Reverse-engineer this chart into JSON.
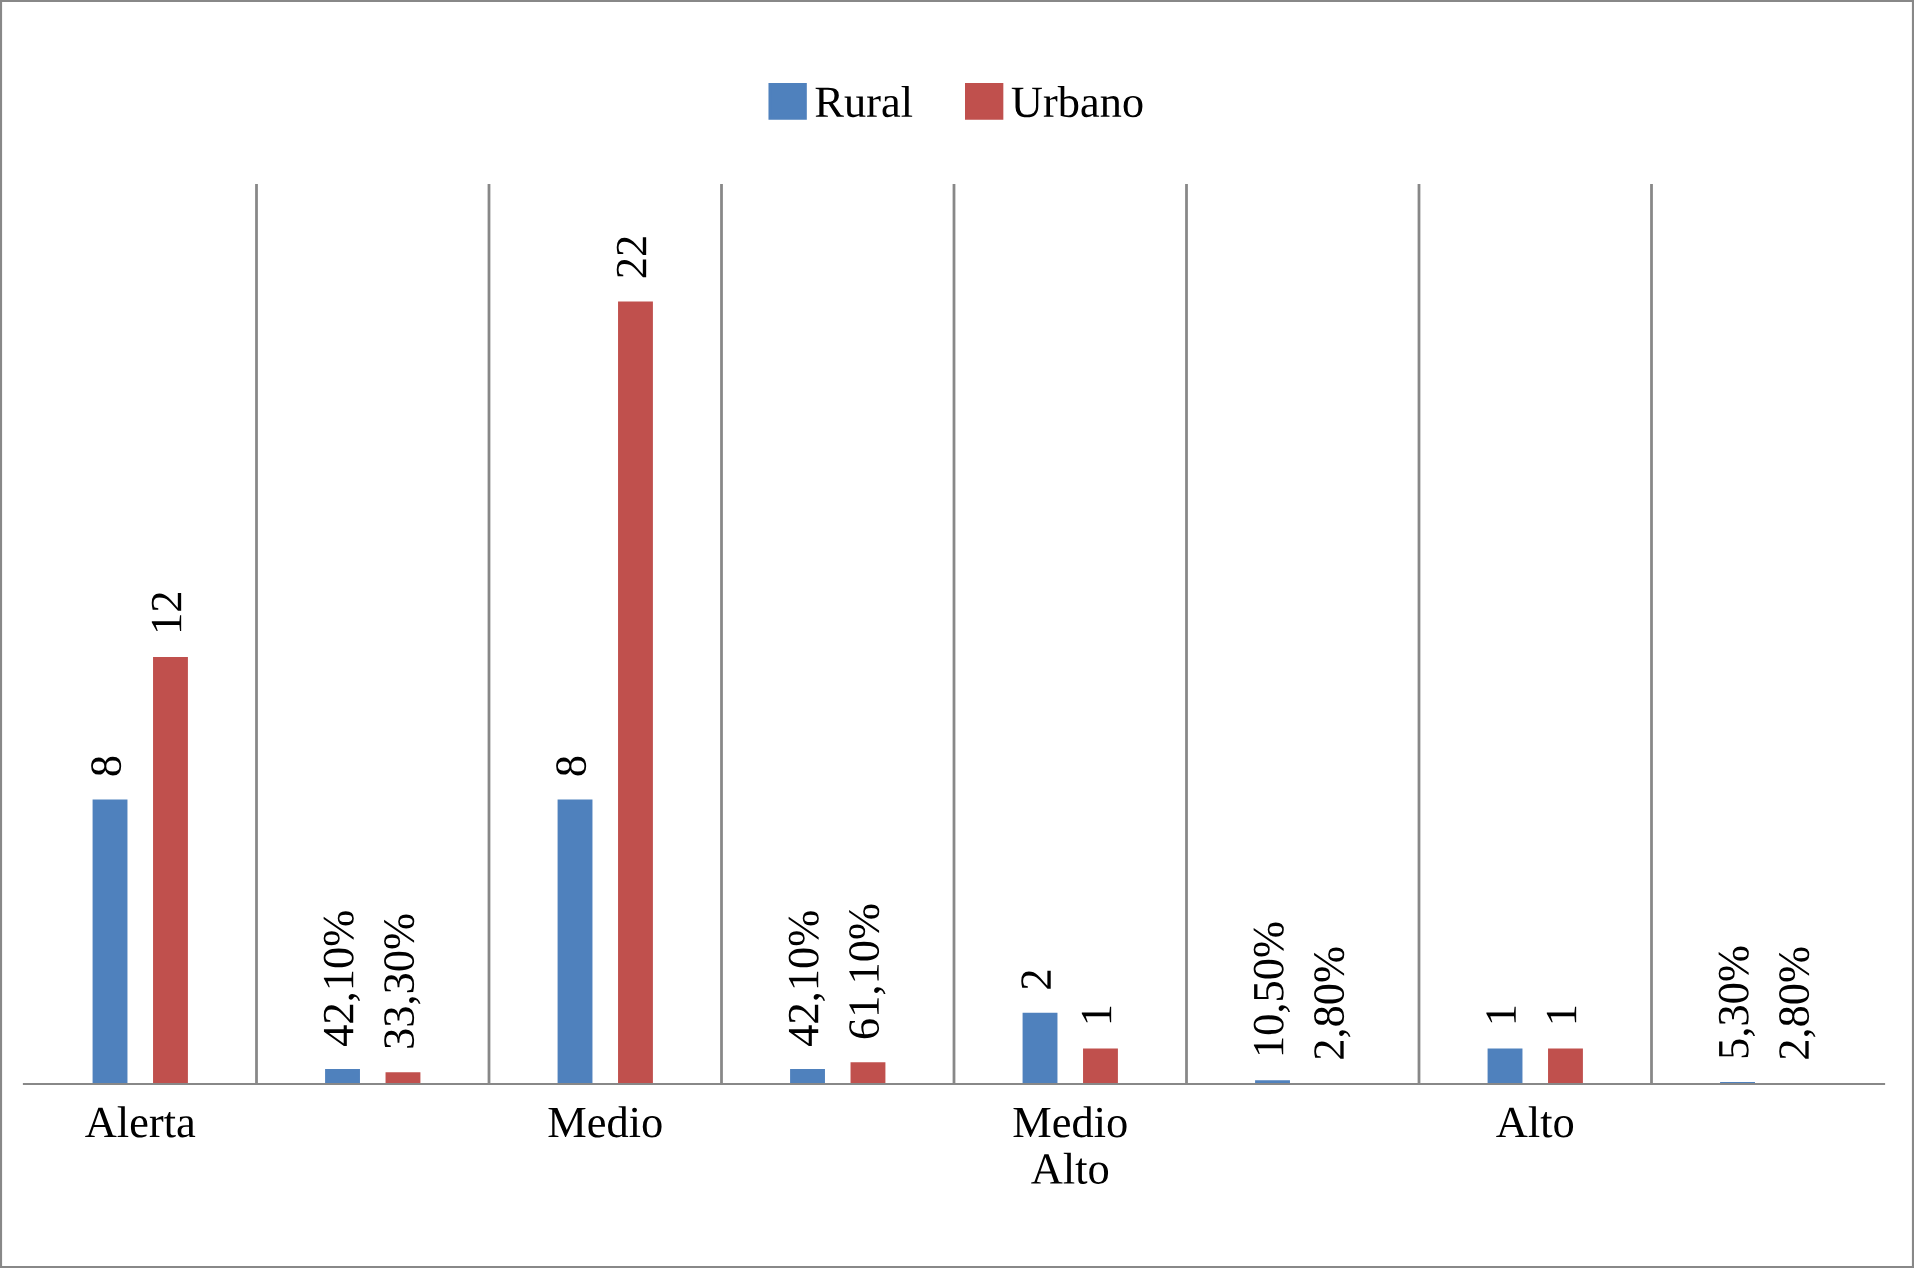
{
  "chart_data": {
    "type": "bar",
    "categories": [
      "Alerta",
      null,
      "Medio",
      null,
      "Medio\nAlto",
      null,
      "Alto",
      null
    ],
    "series": [
      {
        "name": "Rural",
        "color": "#4f81bd",
        "values": [
          8,
          0.421,
          8,
          0.421,
          2,
          0.105,
          1,
          0.053
        ],
        "value_labels": [
          "8",
          "42,10%",
          "8",
          "42,10%",
          "2",
          "10,50%",
          "1",
          "5,30%"
        ]
      },
      {
        "name": "Urbano",
        "color": "#c0504d",
        "values": [
          12,
          0.333,
          22,
          0.611,
          1,
          0.028,
          1,
          0.028
        ],
        "value_labels": [
          "12",
          "33,30%",
          "22",
          "61,10%",
          "1",
          "2,80%",
          "1",
          "2,80%"
        ]
      }
    ],
    "ylim": [
      0,
      25.3
    ],
    "grid": "x",
    "legend": "top",
    "tick_labels": "x"
  }
}
